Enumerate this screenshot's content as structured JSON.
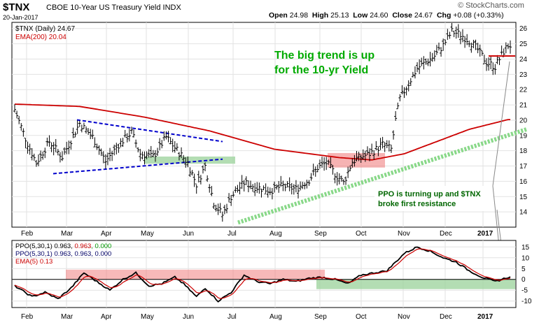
{
  "header": {
    "symbol": "$TNX",
    "description": "CBOE 10-Year US Treasury Yield",
    "exchange": "INDX",
    "date": "20-Jan-2017",
    "open_label": "Open",
    "open": "24.98",
    "high_label": "High",
    "high": "25.13",
    "low_label": "Low",
    "low": "24.60",
    "close_label": "Close",
    "close": "24.67",
    "chg_label": "Chg",
    "chg": "+0.08 (+0.33%)",
    "brand": "© StockCharts.com"
  },
  "chart_data": [
    {
      "type": "ohlc",
      "legend": [
        {
          "text": "$TNX (Daily) 24.67",
          "color": "#000000"
        },
        {
          "text": "EMA(200) 20.04",
          "color": "#cc0000"
        }
      ],
      "y_ticks": [
        14,
        15,
        16,
        17,
        18,
        19,
        20,
        21,
        22,
        23,
        24,
        25,
        26
      ],
      "ylim": [
        13,
        26.4
      ],
      "x_labels": [
        "Feb",
        "Mar",
        "Apr",
        "May",
        "Jun",
        "Jul",
        "Aug",
        "Sep",
        "Oct",
        "Nov",
        "Dec",
        "2017"
      ],
      "grid": true,
      "price_anchors": [
        {
          "x": 0,
          "y": 20.7
        },
        {
          "x": 5,
          "y": 18.8
        },
        {
          "x": 10,
          "y": 17.2
        },
        {
          "x": 16,
          "y": 18.6
        },
        {
          "x": 22,
          "y": 17.6
        },
        {
          "x": 30,
          "y": 19.8
        },
        {
          "x": 36,
          "y": 18.9
        },
        {
          "x": 42,
          "y": 17.3
        },
        {
          "x": 48,
          "y": 18.4
        },
        {
          "x": 54,
          "y": 19.2
        },
        {
          "x": 58,
          "y": 17.8
        },
        {
          "x": 64,
          "y": 17.6
        },
        {
          "x": 70,
          "y": 18.9
        },
        {
          "x": 74,
          "y": 18.2
        },
        {
          "x": 80,
          "y": 17.2
        },
        {
          "x": 84,
          "y": 15.8
        },
        {
          "x": 88,
          "y": 17.0
        },
        {
          "x": 92,
          "y": 14.6
        },
        {
          "x": 96,
          "y": 13.8
        },
        {
          "x": 100,
          "y": 15.0
        },
        {
          "x": 106,
          "y": 15.9
        },
        {
          "x": 112,
          "y": 15.6
        },
        {
          "x": 118,
          "y": 15.4
        },
        {
          "x": 124,
          "y": 15.7
        },
        {
          "x": 130,
          "y": 15.5
        },
        {
          "x": 136,
          "y": 16.1
        },
        {
          "x": 140,
          "y": 16.9
        },
        {
          "x": 144,
          "y": 17.2
        },
        {
          "x": 148,
          "y": 16.5
        },
        {
          "x": 152,
          "y": 15.9
        },
        {
          "x": 156,
          "y": 17.3
        },
        {
          "x": 160,
          "y": 17.6
        },
        {
          "x": 164,
          "y": 17.8
        },
        {
          "x": 170,
          "y": 18.4
        },
        {
          "x": 174,
          "y": 18.1
        },
        {
          "x": 176,
          "y": 20.0
        },
        {
          "x": 178,
          "y": 21.4
        },
        {
          "x": 182,
          "y": 22.4
        },
        {
          "x": 186,
          "y": 23.4
        },
        {
          "x": 190,
          "y": 23.8
        },
        {
          "x": 194,
          "y": 24.2
        },
        {
          "x": 198,
          "y": 24.9
        },
        {
          "x": 202,
          "y": 25.8
        },
        {
          "x": 206,
          "y": 25.6
        },
        {
          "x": 210,
          "y": 25.2
        },
        {
          "x": 214,
          "y": 24.6
        },
        {
          "x": 218,
          "y": 23.8
        },
        {
          "x": 222,
          "y": 23.5
        },
        {
          "x": 226,
          "y": 24.5
        },
        {
          "x": 228,
          "y": 24.9
        }
      ],
      "ema200_anchors": [
        {
          "x": 0,
          "y": 21.05
        },
        {
          "x": 30,
          "y": 20.9
        },
        {
          "x": 60,
          "y": 20.2
        },
        {
          "x": 90,
          "y": 19.3
        },
        {
          "x": 120,
          "y": 18.1
        },
        {
          "x": 150,
          "y": 17.55
        },
        {
          "x": 165,
          "y": 17.4
        },
        {
          "x": 180,
          "y": 17.8
        },
        {
          "x": 195,
          "y": 18.6
        },
        {
          "x": 210,
          "y": 19.4
        },
        {
          "x": 228,
          "y": 20.04
        }
      ],
      "annotations": [
        {
          "kind": "text",
          "lines": [
            "The big trend is up",
            "for the 10-yr Yield"
          ],
          "color": "#00aa00"
        },
        {
          "kind": "text",
          "lines": [
            "PPO is turning up and $TNX",
            "broke first resistance"
          ],
          "color": "#006600"
        }
      ]
    },
    {
      "type": "line",
      "legend": [
        {
          "parts": [
            {
              "t": "PPO(5,30,1) 0.963, ",
              "c": "#000000"
            },
            {
              "t": "0.963",
              "c": "#cc0000"
            },
            {
              "t": ", 0.000",
              "c": "#009900"
            }
          ]
        },
        {
          "parts": [
            {
              "t": "PPO(5,30,1) 0.963, 0.963, 0.000",
              "c": "#000066"
            }
          ]
        },
        {
          "parts": [
            {
              "t": "EMA(5) 0.13",
              "c": "#cc0000"
            }
          ]
        }
      ],
      "y_ticks": [
        15,
        10,
        5,
        0,
        -5,
        -10
      ],
      "ylim": [
        -13,
        18
      ],
      "x_labels": [
        "Feb",
        "Mar",
        "Apr",
        "May",
        "Jun",
        "Jul",
        "Aug",
        "Sep",
        "Oct",
        "Nov",
        "Dec",
        "2017"
      ],
      "ppo_anchors": [
        {
          "x": 0,
          "y": -3
        },
        {
          "x": 8,
          "y": -8
        },
        {
          "x": 14,
          "y": -6
        },
        {
          "x": 20,
          "y": -9
        },
        {
          "x": 26,
          "y": -4
        },
        {
          "x": 32,
          "y": 3
        },
        {
          "x": 38,
          "y": -1
        },
        {
          "x": 44,
          "y": -5
        },
        {
          "x": 50,
          "y": 0
        },
        {
          "x": 56,
          "y": 3
        },
        {
          "x": 62,
          "y": -3
        },
        {
          "x": 68,
          "y": -2
        },
        {
          "x": 74,
          "y": 1
        },
        {
          "x": 78,
          "y": -2
        },
        {
          "x": 84,
          "y": -8
        },
        {
          "x": 88,
          "y": -4
        },
        {
          "x": 94,
          "y": -10
        },
        {
          "x": 100,
          "y": -6
        },
        {
          "x": 106,
          "y": 2
        },
        {
          "x": 112,
          "y": -1
        },
        {
          "x": 118,
          "y": -2
        },
        {
          "x": 124,
          "y": 0
        },
        {
          "x": 130,
          "y": -1
        },
        {
          "x": 136,
          "y": 0.5
        },
        {
          "x": 142,
          "y": 1
        },
        {
          "x": 148,
          "y": 0
        },
        {
          "x": 154,
          "y": -2
        },
        {
          "x": 160,
          "y": 2
        },
        {
          "x": 166,
          "y": 3
        },
        {
          "x": 172,
          "y": 4
        },
        {
          "x": 176,
          "y": 8
        },
        {
          "x": 180,
          "y": 12
        },
        {
          "x": 186,
          "y": 15
        },
        {
          "x": 192,
          "y": 13
        },
        {
          "x": 198,
          "y": 10
        },
        {
          "x": 204,
          "y": 8
        },
        {
          "x": 210,
          "y": 4
        },
        {
          "x": 216,
          "y": 1
        },
        {
          "x": 222,
          "y": -1
        },
        {
          "x": 226,
          "y": 0.3
        },
        {
          "x": 228,
          "y": 0.96
        }
      ]
    }
  ]
}
